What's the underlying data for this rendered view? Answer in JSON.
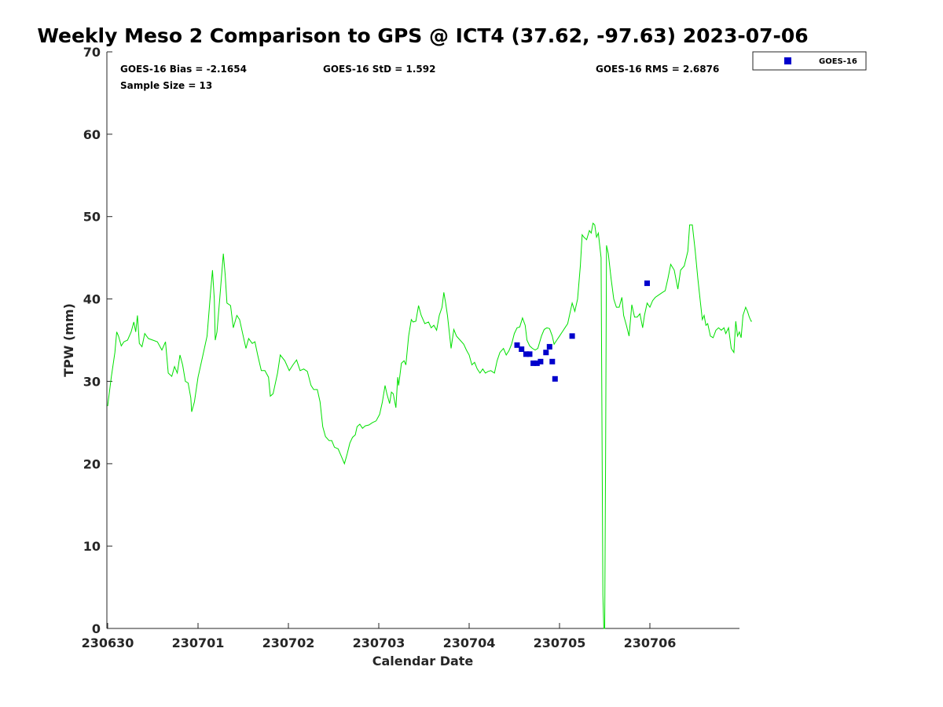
{
  "chart_data": {
    "type": "line",
    "title": "Weekly Meso 2 Comparison to GPS @ ICT4 (37.62, -97.63) 2023-07-06",
    "xlabel": "Calendar Date",
    "ylabel": "TPW (mm)",
    "xlim": [
      230630.0,
      230607.0
    ],
    "x_axis_days": [
      0,
      7
    ],
    "ylim": [
      0,
      70
    ],
    "yticks": [
      0,
      10,
      20,
      30,
      40,
      50,
      60,
      70
    ],
    "xticks": [
      "230630",
      "230701",
      "230702",
      "230703",
      "230704",
      "230705",
      "230706"
    ],
    "grid": false,
    "legend_position": "outside-top-right",
    "stats": {
      "bias": "GOES-16 Bias = -2.1654",
      "std": "GOES-16 StD = 1.592",
      "rms": "GOES-16 RMS = 2.6876",
      "sample": "Sample Size = 13"
    },
    "series": [
      {
        "name": "GOES-16",
        "kind": "scatter",
        "color": "#0000cc",
        "points": [
          {
            "day": 4.53,
            "y": 34.4
          },
          {
            "day": 4.58,
            "y": 33.9
          },
          {
            "day": 4.63,
            "y": 33.3
          },
          {
            "day": 4.67,
            "y": 33.3
          },
          {
            "day": 4.71,
            "y": 32.2
          },
          {
            "day": 4.75,
            "y": 32.2
          },
          {
            "day": 4.79,
            "y": 32.4
          },
          {
            "day": 4.85,
            "y": 33.5
          },
          {
            "day": 4.89,
            "y": 34.2
          },
          {
            "day": 4.92,
            "y": 32.4
          },
          {
            "day": 4.95,
            "y": 30.3
          },
          {
            "day": 5.14,
            "y": 35.5
          },
          {
            "day": 5.97,
            "y": 41.9
          }
        ]
      },
      {
        "kind": "line",
        "color": "#00e000",
        "points": [
          [
            0.0,
            27.0
          ],
          [
            0.04,
            30.5
          ],
          [
            0.08,
            33.5
          ],
          [
            0.1,
            36.0
          ],
          [
            0.12,
            35.5
          ],
          [
            0.15,
            34.3
          ],
          [
            0.18,
            34.8
          ],
          [
            0.22,
            35.0
          ],
          [
            0.26,
            36.0
          ],
          [
            0.29,
            37.2
          ],
          [
            0.31,
            36.0
          ],
          [
            0.33,
            38.0
          ],
          [
            0.35,
            34.6
          ],
          [
            0.38,
            34.2
          ],
          [
            0.41,
            35.8
          ],
          [
            0.45,
            35.2
          ],
          [
            0.5,
            35.0
          ],
          [
            0.55,
            34.8
          ],
          [
            0.6,
            33.8
          ],
          [
            0.64,
            34.8
          ],
          [
            0.67,
            31.0
          ],
          [
            0.71,
            30.6
          ],
          [
            0.74,
            31.8
          ],
          [
            0.77,
            31.0
          ],
          [
            0.8,
            33.2
          ],
          [
            0.83,
            32.0
          ],
          [
            0.86,
            30.0
          ],
          [
            0.89,
            29.8
          ],
          [
            0.92,
            28.0
          ],
          [
            0.93,
            26.3
          ],
          [
            0.96,
            27.5
          ],
          [
            1.0,
            30.5
          ],
          [
            1.05,
            33.0
          ],
          [
            1.1,
            35.5
          ],
          [
            1.14,
            41.0
          ],
          [
            1.16,
            43.5
          ],
          [
            1.18,
            40.0
          ],
          [
            1.19,
            35.0
          ],
          [
            1.21,
            36.0
          ],
          [
            1.24,
            40.0
          ],
          [
            1.28,
            45.5
          ],
          [
            1.3,
            43.0
          ],
          [
            1.32,
            39.5
          ],
          [
            1.36,
            39.2
          ],
          [
            1.39,
            36.5
          ],
          [
            1.43,
            38.0
          ],
          [
            1.46,
            37.5
          ],
          [
            1.5,
            35.5
          ],
          [
            1.53,
            34.0
          ],
          [
            1.56,
            35.2
          ],
          [
            1.6,
            34.6
          ],
          [
            1.63,
            34.8
          ],
          [
            1.66,
            33.2
          ],
          [
            1.7,
            31.3
          ],
          [
            1.74,
            31.3
          ],
          [
            1.78,
            30.5
          ],
          [
            1.8,
            28.2
          ],
          [
            1.83,
            28.5
          ],
          [
            1.85,
            29.5
          ],
          [
            1.88,
            31.0
          ],
          [
            1.91,
            33.2
          ],
          [
            1.96,
            32.5
          ],
          [
            2.01,
            31.3
          ],
          [
            2.05,
            32.0
          ],
          [
            2.09,
            32.6
          ],
          [
            2.13,
            31.3
          ],
          [
            2.17,
            31.5
          ],
          [
            2.21,
            31.2
          ],
          [
            2.25,
            29.5
          ],
          [
            2.28,
            29.0
          ],
          [
            2.32,
            29.0
          ],
          [
            2.35,
            27.5
          ],
          [
            2.38,
            24.5
          ],
          [
            2.41,
            23.3
          ],
          [
            2.45,
            22.8
          ],
          [
            2.48,
            22.8
          ],
          [
            2.51,
            22.0
          ],
          [
            2.55,
            21.8
          ],
          [
            2.59,
            20.8
          ],
          [
            2.62,
            20.0
          ],
          [
            2.65,
            21.2
          ],
          [
            2.68,
            22.5
          ],
          [
            2.71,
            23.2
          ],
          [
            2.74,
            23.5
          ],
          [
            2.76,
            24.5
          ],
          [
            2.79,
            24.8
          ],
          [
            2.82,
            24.3
          ],
          [
            2.85,
            24.6
          ],
          [
            2.89,
            24.7
          ],
          [
            2.93,
            25.0
          ],
          [
            2.97,
            25.2
          ],
          [
            3.01,
            26.0
          ],
          [
            3.04,
            27.5
          ],
          [
            3.07,
            29.5
          ],
          [
            3.09,
            28.5
          ],
          [
            3.12,
            27.3
          ],
          [
            3.14,
            28.7
          ],
          [
            3.16,
            28.5
          ],
          [
            3.19,
            26.8
          ],
          [
            3.21,
            30.5
          ],
          [
            3.22,
            29.5
          ],
          [
            3.25,
            32.2
          ],
          [
            3.28,
            32.5
          ],
          [
            3.3,
            32.0
          ],
          [
            3.33,
            35.5
          ],
          [
            3.36,
            37.5
          ],
          [
            3.38,
            37.2
          ],
          [
            3.41,
            37.3
          ],
          [
            3.44,
            39.2
          ],
          [
            3.47,
            38.0
          ],
          [
            3.51,
            37.0
          ],
          [
            3.55,
            37.2
          ],
          [
            3.58,
            36.5
          ],
          [
            3.61,
            36.8
          ],
          [
            3.64,
            36.2
          ],
          [
            3.67,
            38.0
          ],
          [
            3.7,
            39.0
          ],
          [
            3.72,
            40.8
          ],
          [
            3.74,
            39.5
          ],
          [
            3.76,
            38.0
          ],
          [
            3.78,
            36.0
          ],
          [
            3.8,
            34.0
          ],
          [
            3.83,
            36.3
          ],
          [
            3.86,
            35.5
          ],
          [
            3.9,
            35.0
          ],
          [
            3.94,
            34.5
          ],
          [
            3.97,
            33.8
          ],
          [
            4.0,
            33.2
          ],
          [
            4.03,
            32.0
          ],
          [
            4.06,
            32.3
          ],
          [
            4.09,
            31.5
          ],
          [
            4.12,
            31.0
          ],
          [
            4.15,
            31.5
          ],
          [
            4.18,
            31.0
          ],
          [
            4.21,
            31.2
          ],
          [
            4.24,
            31.3
          ],
          [
            4.28,
            31.0
          ],
          [
            4.31,
            32.5
          ],
          [
            4.34,
            33.5
          ],
          [
            4.38,
            34.0
          ],
          [
            4.41,
            33.2
          ],
          [
            4.44,
            33.7
          ],
          [
            4.47,
            34.5
          ],
          [
            4.5,
            35.8
          ],
          [
            4.53,
            36.5
          ],
          [
            4.56,
            36.6
          ],
          [
            4.59,
            37.7
          ],
          [
            4.62,
            36.8
          ],
          [
            4.64,
            35.0
          ],
          [
            4.67,
            34.3
          ],
          [
            4.7,
            34.0
          ],
          [
            4.73,
            33.8
          ],
          [
            4.76,
            34.0
          ],
          [
            4.8,
            35.5
          ],
          [
            4.83,
            36.3
          ],
          [
            4.86,
            36.5
          ],
          [
            4.89,
            36.4
          ],
          [
            4.92,
            35.5
          ],
          [
            4.94,
            34.5
          ],
          [
            4.97,
            35.0
          ],
          [
            5.0,
            35.5
          ],
          [
            5.03,
            36.0
          ],
          [
            5.06,
            36.5
          ],
          [
            5.09,
            37.0
          ],
          [
            5.12,
            38.5
          ],
          [
            5.14,
            39.5
          ],
          [
            5.17,
            38.5
          ],
          [
            5.2,
            40.0
          ],
          [
            5.23,
            44.0
          ],
          [
            5.25,
            47.8
          ],
          [
            5.27,
            47.5
          ],
          [
            5.3,
            47.2
          ],
          [
            5.33,
            48.3
          ],
          [
            5.35,
            48.0
          ],
          [
            5.37,
            49.2
          ],
          [
            5.39,
            49.0
          ],
          [
            5.41,
            47.5
          ],
          [
            5.43,
            48.0
          ],
          [
            5.46,
            45.0
          ],
          [
            5.48,
            4.0
          ],
          [
            5.49,
            0.0
          ],
          [
            5.5,
            0.0
          ],
          [
            5.51,
            20.0
          ],
          [
            5.52,
            46.5
          ],
          [
            5.54,
            45.5
          ],
          [
            5.57,
            42.5
          ],
          [
            5.6,
            40.0
          ],
          [
            5.63,
            39.0
          ],
          [
            5.66,
            39.0
          ],
          [
            5.69,
            40.2
          ],
          [
            5.71,
            38.0
          ],
          [
            5.74,
            36.8
          ],
          [
            5.77,
            35.5
          ],
          [
            5.8,
            39.3
          ],
          [
            5.83,
            37.8
          ],
          [
            5.86,
            37.8
          ],
          [
            5.89,
            38.2
          ],
          [
            5.92,
            36.5
          ],
          [
            5.94,
            38.0
          ],
          [
            5.97,
            39.5
          ],
          [
            6.0,
            39.0
          ],
          [
            6.03,
            39.8
          ],
          [
            6.06,
            40.2
          ],
          [
            6.1,
            40.5
          ],
          [
            6.14,
            40.8
          ],
          [
            6.17,
            41.0
          ],
          [
            6.2,
            42.5
          ],
          [
            6.23,
            44.2
          ],
          [
            6.27,
            43.5
          ],
          [
            6.31,
            41.2
          ],
          [
            6.34,
            43.5
          ],
          [
            6.38,
            44.0
          ],
          [
            6.42,
            45.8
          ],
          [
            6.44,
            49.0
          ],
          [
            6.47,
            49.0
          ],
          [
            6.5,
            46.0
          ],
          [
            6.53,
            42.5
          ],
          [
            6.56,
            39.5
          ],
          [
            6.58,
            37.5
          ],
          [
            6.6,
            38.0
          ],
          [
            6.62,
            36.8
          ],
          [
            6.64,
            37.0
          ],
          [
            6.67,
            35.5
          ],
          [
            6.7,
            35.3
          ],
          [
            6.73,
            36.2
          ],
          [
            6.76,
            36.5
          ],
          [
            6.79,
            36.2
          ],
          [
            6.82,
            36.5
          ],
          [
            6.84,
            35.8
          ],
          [
            6.87,
            36.5
          ],
          [
            6.9,
            34.0
          ],
          [
            6.93,
            33.5
          ],
          [
            6.95,
            37.3
          ],
          [
            6.97,
            35.5
          ],
          [
            6.99,
            36.0
          ],
          [
            7.01,
            35.3
          ],
          [
            7.03,
            38.0
          ],
          [
            7.06,
            39.0
          ],
          [
            7.08,
            38.5
          ],
          [
            7.1,
            37.8
          ],
          [
            7.12,
            37.3
          ],
          [
            7.13,
            37.3
          ]
        ]
      }
    ]
  }
}
